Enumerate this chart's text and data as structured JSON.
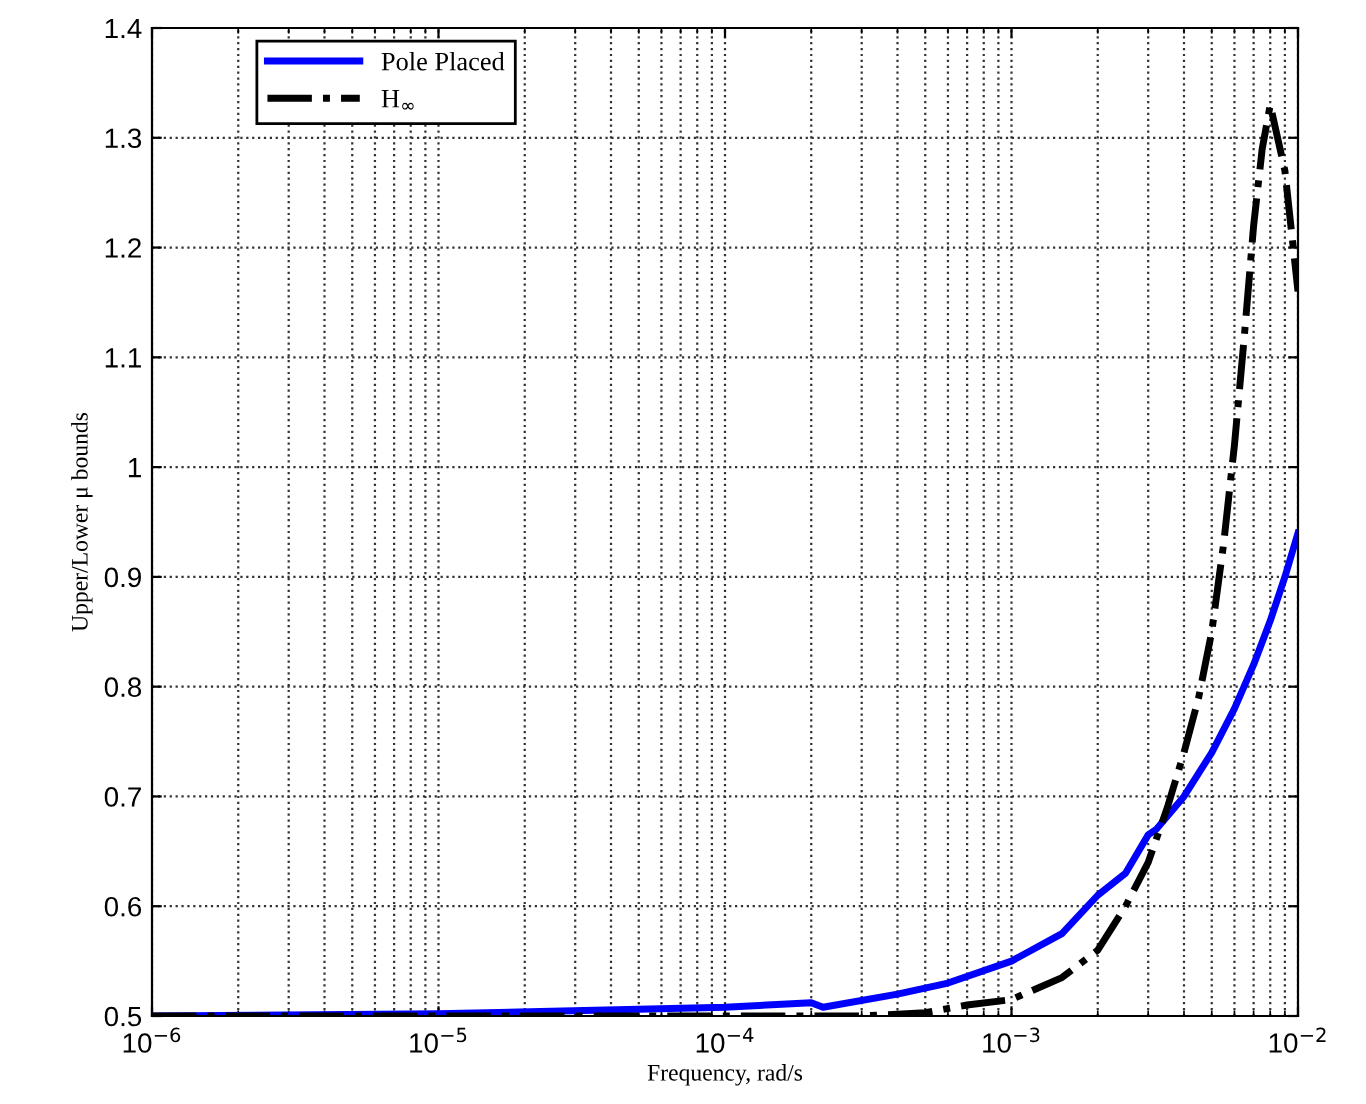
{
  "chart_data": {
    "type": "line",
    "xlabel": "Frequency, rad/s",
    "ylabel": "Upper/Lower μ bounds",
    "log": "x",
    "grid": true,
    "legend": "top left",
    "xlim": [
      1e-06,
      0.01
    ],
    "xticks": [
      {
        "value": 1e-06,
        "label": "10$^{−6}$"
      },
      {
        "value": 1e-05,
        "label": "10$^{−5}$"
      },
      {
        "value": 0.0001,
        "label": "10$^{−4}$"
      },
      {
        "value": 0.001,
        "label": "10$^{−3}$"
      },
      {
        "value": 0.01,
        "label": "10$^{−2}$"
      }
    ],
    "ylim": [
      0.5,
      1.4
    ],
    "yticks": [
      0.5,
      0.6,
      0.7,
      0.8,
      0.9,
      1,
      1.1,
      1.2,
      1.3,
      1.4
    ],
    "series": [
      {
        "name": "Pole Placed",
        "color": "#0000ff",
        "line_style": "solid",
        "x": [
          1e-06,
          1e-05,
          0.0001,
          0.0002,
          0.00022,
          0.0004,
          0.0006,
          0.001,
          0.0015,
          0.002,
          0.0025,
          0.003,
          0.0032,
          0.004,
          0.005,
          0.006,
          0.007,
          0.008,
          0.009,
          0.01
        ],
        "values": [
          0.5,
          0.502,
          0.508,
          0.512,
          0.508,
          0.52,
          0.53,
          0.55,
          0.575,
          0.61,
          0.63,
          0.665,
          0.67,
          0.7,
          0.74,
          0.78,
          0.82,
          0.86,
          0.9,
          0.94
        ]
      },
      {
        "name": "H$_{∞}$",
        "color": "#000000",
        "line_style": "dashdot",
        "x": [
          1e-06,
          1e-05,
          0.0001,
          0.0003,
          0.0005,
          0.0007,
          0.001,
          0.0015,
          0.002,
          0.0025,
          0.003,
          0.0035,
          0.004,
          0.0045,
          0.005,
          0.0055,
          0.006,
          0.0065,
          0.007,
          0.0075,
          0.008,
          0.009,
          0.01
        ],
        "values": [
          0.5,
          0.5,
          0.5,
          0.5,
          0.503,
          0.51,
          0.515,
          0.535,
          0.56,
          0.6,
          0.64,
          0.69,
          0.74,
          0.79,
          0.85,
          0.93,
          1.02,
          1.12,
          1.22,
          1.29,
          1.33,
          1.27,
          1.16
        ]
      }
    ]
  }
}
